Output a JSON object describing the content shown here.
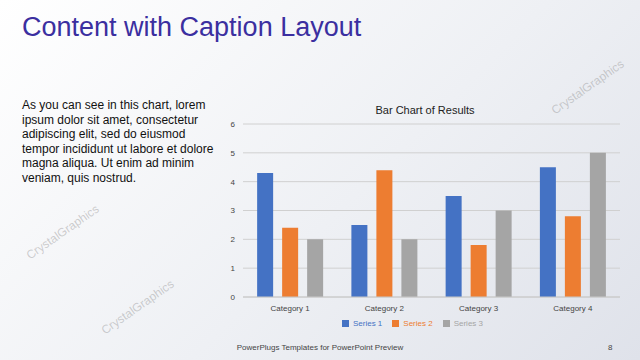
{
  "slide": {
    "title": "Content with Caption Layout",
    "caption": "As you can see in this chart, lorem ipsum dolor sit amet, consectetur adipiscing elit, sed do eiusmod tempor incididunt ut labore et dolore magna aliqua. Ut enim ad minim veniam, quis nostrud.",
    "footer": "PowerPlugs Templates for PowerPoint Preview",
    "page": "8",
    "watermark": "CrystalGraphics"
  },
  "chart_data": {
    "type": "bar",
    "title": "Bar Chart of Results",
    "categories": [
      "Category 1",
      "Category 2",
      "Category 3",
      "Category 4"
    ],
    "series": [
      {
        "name": "Series 1",
        "color": "#4472c4",
        "values": [
          4.3,
          2.5,
          3.5,
          4.5
        ]
      },
      {
        "name": "Series 2",
        "color": "#ed7d31",
        "values": [
          2.4,
          4.4,
          1.8,
          2.8
        ]
      },
      {
        "name": "Series 3",
        "color": "#a5a5a5",
        "values": [
          2,
          2,
          3,
          5
        ]
      }
    ],
    "ylim": [
      0,
      6
    ],
    "yticks": [
      0,
      1,
      2,
      3,
      4,
      5,
      6
    ],
    "grid": true,
    "legend": "bottom"
  }
}
